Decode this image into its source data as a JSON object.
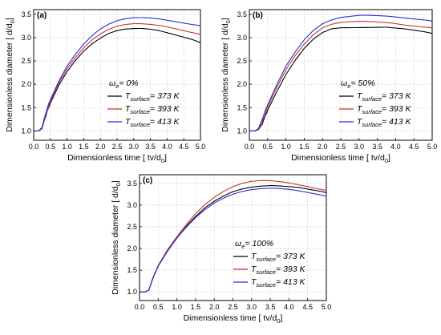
{
  "figure": {
    "colors": {
      "373": "#000000",
      "393": "#c0392b",
      "413": "#2b2bd6"
    },
    "grid": "dashed",
    "legend_position": "bottom-right"
  },
  "chart_data": [
    {
      "type": "line",
      "panel_label": "(a)",
      "condition_symbol": "ω",
      "condition_sub": "e",
      "condition_value": "= 0%",
      "xlabel": "Dimensionless time [ tv/d",
      "xlabel_sub": "0",
      "xlabel_end": "]",
      "ylabel": "Dimensionless  diameter  [ d/d",
      "ylabel_sub": "0",
      "ylabel_end": "]",
      "xlim": [
        0.0,
        5.0
      ],
      "ylim": [
        0.8,
        3.6
      ],
      "xticks": [
        "0.0",
        "0.5",
        "1.0",
        "1.5",
        "2.0",
        "2.5",
        "3.0",
        "3.5",
        "4.0",
        "4.5",
        "5.0"
      ],
      "yticks": [
        "1.0",
        "1.5",
        "2.0",
        "2.5",
        "3.0",
        "3.5"
      ],
      "series": [
        {
          "name": "T",
          "name_sub": "surface",
          "name_tail": "= 373 K",
          "color_key": "373",
          "x": [
            0.0,
            0.15,
            0.25,
            0.35,
            0.5,
            0.75,
            1.0,
            1.25,
            1.5,
            1.75,
            2.0,
            2.25,
            2.5,
            2.75,
            3.0,
            3.25,
            3.5,
            3.75,
            4.0,
            4.25,
            4.5,
            4.75,
            5.0
          ],
          "y": [
            1.0,
            1.0,
            1.05,
            1.3,
            1.6,
            1.98,
            2.28,
            2.52,
            2.72,
            2.88,
            3.0,
            3.1,
            3.16,
            3.19,
            3.2,
            3.2,
            3.18,
            3.15,
            3.1,
            3.05,
            3.0,
            2.95,
            2.88
          ]
        },
        {
          "name": "T",
          "name_sub": "surface",
          "name_tail": "= 393 K",
          "color_key": "393",
          "x": [
            0.0,
            0.15,
            0.25,
            0.35,
            0.5,
            0.75,
            1.0,
            1.25,
            1.5,
            1.75,
            2.0,
            2.25,
            2.5,
            2.75,
            3.0,
            3.25,
            3.5,
            3.75,
            4.0,
            4.25,
            4.5,
            4.75,
            5.0
          ],
          "y": [
            1.0,
            1.0,
            1.06,
            1.32,
            1.63,
            2.01,
            2.32,
            2.56,
            2.77,
            2.94,
            3.07,
            3.17,
            3.24,
            3.28,
            3.3,
            3.3,
            3.29,
            3.27,
            3.24,
            3.2,
            3.16,
            3.12,
            3.08
          ]
        },
        {
          "name": "T",
          "name_sub": "surface",
          "name_tail": "= 413 K",
          "color_key": "413",
          "x": [
            0.0,
            0.15,
            0.25,
            0.35,
            0.5,
            0.75,
            1.0,
            1.25,
            1.5,
            1.75,
            2.0,
            2.25,
            2.5,
            2.75,
            3.0,
            3.25,
            3.5,
            3.75,
            4.0,
            4.25,
            4.5,
            4.75,
            5.0
          ],
          "y": [
            1.0,
            1.0,
            1.08,
            1.36,
            1.68,
            2.07,
            2.4,
            2.65,
            2.87,
            3.05,
            3.19,
            3.29,
            3.36,
            3.4,
            3.42,
            3.42,
            3.41,
            3.39,
            3.36,
            3.33,
            3.3,
            3.27,
            3.25
          ]
        }
      ]
    },
    {
      "type": "line",
      "panel_label": "(b)",
      "condition_symbol": "ω",
      "condition_sub": "e",
      "condition_value": "= 50%",
      "xlabel": "Dimensionless time [ tv/d",
      "xlabel_sub": "0",
      "xlabel_end": "]",
      "ylabel": "Dimensionless  diameter  [ d/d",
      "ylabel_sub": "0",
      "ylabel_end": "]",
      "xlim": [
        0.0,
        5.0
      ],
      "ylim": [
        0.8,
        3.6
      ],
      "xticks": [
        "0.0",
        "0.5",
        "1.0",
        "1.5",
        "2.0",
        "2.5",
        "3.0",
        "3.5",
        "4.0",
        "4.5",
        "5.0"
      ],
      "yticks": [
        "1.0",
        "1.5",
        "2.0",
        "2.5",
        "3.0",
        "3.5"
      ],
      "series": [
        {
          "name": "T",
          "name_sub": "surface",
          "name_tail": "= 373 K",
          "color_key": "373",
          "x": [
            0.0,
            0.15,
            0.25,
            0.35,
            0.5,
            0.75,
            1.0,
            1.25,
            1.5,
            1.75,
            2.0,
            2.25,
            2.5,
            2.75,
            3.0,
            3.25,
            3.5,
            3.75,
            4.0,
            4.25,
            4.5,
            4.75,
            5.0
          ],
          "y": [
            1.0,
            1.0,
            1.03,
            1.15,
            1.45,
            1.85,
            2.22,
            2.52,
            2.78,
            2.98,
            3.12,
            3.2,
            3.22,
            3.22,
            3.22,
            3.22,
            3.22,
            3.22,
            3.2,
            3.18,
            3.15,
            3.12,
            3.08
          ]
        },
        {
          "name": "T",
          "name_sub": "surface",
          "name_tail": "= 393 K",
          "color_key": "393",
          "x": [
            0.0,
            0.15,
            0.25,
            0.35,
            0.5,
            0.75,
            1.0,
            1.25,
            1.5,
            1.75,
            2.0,
            2.25,
            2.5,
            2.75,
            3.0,
            3.25,
            3.5,
            3.75,
            4.0,
            4.25,
            4.5,
            4.75,
            5.0
          ],
          "y": [
            1.0,
            1.0,
            1.04,
            1.2,
            1.5,
            1.92,
            2.3,
            2.6,
            2.85,
            3.05,
            3.2,
            3.28,
            3.32,
            3.34,
            3.35,
            3.35,
            3.34,
            3.33,
            3.31,
            3.28,
            3.26,
            3.24,
            3.22
          ]
        },
        {
          "name": "T",
          "name_sub": "surface",
          "name_tail": "= 413 K",
          "color_key": "413",
          "x": [
            0.0,
            0.15,
            0.25,
            0.35,
            0.5,
            0.75,
            1.0,
            1.25,
            1.5,
            1.75,
            2.0,
            2.25,
            2.5,
            2.75,
            3.0,
            3.25,
            3.5,
            3.75,
            4.0,
            4.25,
            4.5,
            4.75,
            5.0
          ],
          "y": [
            1.0,
            1.0,
            1.05,
            1.25,
            1.57,
            2.0,
            2.4,
            2.7,
            2.96,
            3.16,
            3.3,
            3.38,
            3.43,
            3.45,
            3.47,
            3.47,
            3.46,
            3.45,
            3.43,
            3.41,
            3.39,
            3.37,
            3.35
          ]
        }
      ]
    },
    {
      "type": "line",
      "panel_label": "(c)",
      "condition_symbol": "ω",
      "condition_sub": "e",
      "condition_value": "= 100%",
      "xlabel": "Dimensionless time [ tv/d",
      "xlabel_sub": "0",
      "xlabel_end": "]",
      "ylabel": "Dimensionless  diameter  [ d/d",
      "ylabel_sub": "0",
      "ylabel_end": "]",
      "xlim": [
        0.0,
        5.0
      ],
      "ylim": [
        0.8,
        3.7
      ],
      "xticks": [
        "0.0",
        "0.5",
        "1.0",
        "1.5",
        "2.0",
        "2.5",
        "3.0",
        "3.5",
        "4.0",
        "4.5",
        "5.0"
      ],
      "yticks": [
        "1.0",
        "1.5",
        "2.0",
        "2.5",
        "3.0",
        "3.5"
      ],
      "series": [
        {
          "name": "T",
          "name_sub": "surface",
          "name_tail": "= 373 K",
          "color_key": "373",
          "x": [
            0.0,
            0.15,
            0.25,
            0.35,
            0.5,
            0.75,
            1.0,
            1.25,
            1.5,
            1.75,
            2.0,
            2.25,
            2.5,
            2.75,
            3.0,
            3.25,
            3.5,
            3.75,
            4.0,
            4.25,
            4.5,
            4.75,
            5.0
          ],
          "y": [
            1.0,
            1.0,
            1.04,
            1.3,
            1.6,
            1.95,
            2.25,
            2.52,
            2.75,
            2.95,
            3.1,
            3.22,
            3.32,
            3.38,
            3.42,
            3.44,
            3.45,
            3.44,
            3.42,
            3.4,
            3.36,
            3.32,
            3.28
          ]
        },
        {
          "name": "T",
          "name_sub": "surface",
          "name_tail": "= 393 K",
          "color_key": "393",
          "x": [
            0.0,
            0.15,
            0.25,
            0.35,
            0.5,
            0.75,
            1.0,
            1.25,
            1.5,
            1.75,
            2.0,
            2.25,
            2.5,
            2.75,
            3.0,
            3.25,
            3.5,
            3.75,
            4.0,
            4.25,
            4.5,
            4.75,
            5.0
          ],
          "y": [
            1.0,
            1.0,
            1.04,
            1.3,
            1.6,
            1.96,
            2.26,
            2.54,
            2.79,
            3.0,
            3.17,
            3.31,
            3.42,
            3.5,
            3.55,
            3.57,
            3.57,
            3.55,
            3.52,
            3.48,
            3.44,
            3.39,
            3.35
          ]
        },
        {
          "name": "T",
          "name_sub": "surface",
          "name_tail": "= 413 K",
          "color_key": "413",
          "x": [
            0.0,
            0.15,
            0.25,
            0.35,
            0.5,
            0.75,
            1.0,
            1.25,
            1.5,
            1.75,
            2.0,
            2.25,
            2.5,
            2.75,
            3.0,
            3.25,
            3.5,
            3.75,
            4.0,
            4.25,
            4.5,
            4.75,
            5.0
          ],
          "y": [
            1.0,
            1.0,
            1.04,
            1.3,
            1.6,
            1.95,
            2.25,
            2.5,
            2.72,
            2.9,
            3.05,
            3.16,
            3.25,
            3.31,
            3.35,
            3.37,
            3.38,
            3.37,
            3.35,
            3.32,
            3.28,
            3.24,
            3.2
          ]
        }
      ]
    }
  ]
}
